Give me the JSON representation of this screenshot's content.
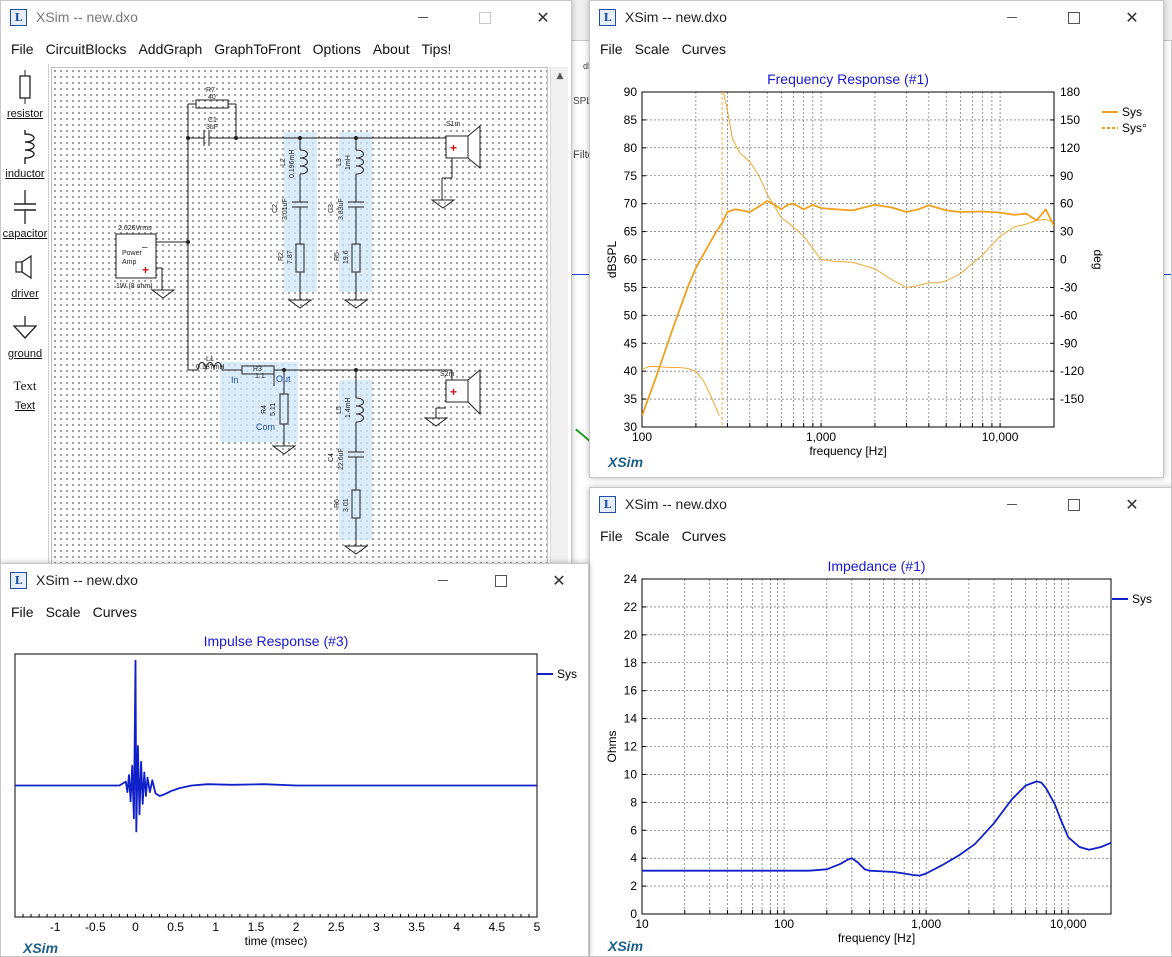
{
  "circuit_window": {
    "title": "XSim -- new.dxo",
    "menu": [
      "File",
      "CircuitBlocks",
      "AddGraph",
      "GraphToFront",
      "Options",
      "About",
      "Tips!"
    ],
    "palette": [
      {
        "label": "resistor",
        "icon": "resistor-icon"
      },
      {
        "label": "inductor",
        "icon": "inductor-icon"
      },
      {
        "label": "capacitor",
        "icon": "capacitor-icon"
      },
      {
        "label": "driver",
        "icon": "speaker-icon"
      },
      {
        "label": "ground",
        "icon": "ground-icon"
      },
      {
        "label": "Text",
        "icon": "text-icon"
      }
    ],
    "text_tool_glyph": "Text",
    "components": {
      "R7": {
        "name": "R7",
        "value": "40"
      },
      "C1": {
        "name": "C1",
        "value": "3uF"
      },
      "L2": {
        "name": "L2",
        "value": "0.196mH"
      },
      "L3": {
        "name": "L3",
        "value": "1mH"
      },
      "C2": {
        "name": "C2",
        "value": "3.01uF"
      },
      "C3": {
        "name": "C3",
        "value": "3.83uF"
      },
      "R2": {
        "name": "R2",
        "value": "7.87"
      },
      "R5": {
        "name": "R5",
        "value": "19.6"
      },
      "S1m": {
        "name": "S1m"
      },
      "S2m": {
        "name": "S2m"
      },
      "L1": {
        "name": "L1",
        "value": "0.187mH"
      },
      "R3": {
        "name": "R3",
        "value": "1.1"
      },
      "R4": {
        "name": "R4",
        "value": "5.11"
      },
      "L5": {
        "name": "L5",
        "value": "1.4mH"
      },
      "C4": {
        "name": "C4",
        "value": "22.6uF"
      },
      "R6": {
        "name": "R6",
        "value": "3.01"
      },
      "amp": {
        "vrms": "2.626Vrms",
        "line1": "Power",
        "line2": "Amp",
        "power": "1W (8 ohm)"
      },
      "lpad": {
        "in": "In",
        "out": "Out",
        "com": "Com"
      }
    }
  },
  "behind_window": {
    "fragments": [
      "dB",
      "SPL",
      "Filte"
    ]
  },
  "freq_window": {
    "title": "XSim -- new.dxo",
    "menu": [
      "File",
      "Scale",
      "Curves"
    ],
    "watermark": "XSim",
    "chart_data": {
      "type": "line",
      "title": "Frequency Response (#1)",
      "xlabel": "frequency [Hz]",
      "ylabel": "dBSPL",
      "y2label": "deg",
      "xscale": "log",
      "xlim": [
        100,
        20000
      ],
      "ylim": [
        30,
        90
      ],
      "y2lim": [
        -180,
        180
      ],
      "xticks": [
        {
          "v": 100,
          "label": "100"
        },
        {
          "v": 1000,
          "label": "1,000"
        },
        {
          "v": 10000,
          "label": "10,000"
        }
      ],
      "yticks": [
        30,
        35,
        40,
        45,
        50,
        55,
        60,
        65,
        70,
        75,
        80,
        85,
        90
      ],
      "y2ticks": [
        {
          "v": 180,
          "label": "180"
        },
        {
          "v": 150,
          "label": "150"
        },
        {
          "v": 120,
          "label": "120"
        },
        {
          "v": 90,
          "label": "90"
        },
        {
          "v": 60,
          "label": "60"
        },
        {
          "v": 30,
          "label": "30"
        },
        {
          "v": 0,
          "label": "0"
        },
        {
          "v": -30,
          "label": "-30"
        },
        {
          "v": -60,
          "label": "-60"
        },
        {
          "v": -90,
          "label": "-90"
        },
        {
          "v": -120,
          "label": "-120"
        },
        {
          "v": -150,
          "label": "-150"
        }
      ],
      "grid": true,
      "legend": "top-right",
      "series": [
        {
          "name": "Sys",
          "color": "#f0a020",
          "axis": "left",
          "x": [
            100,
            120,
            150,
            180,
            200,
            230,
            260,
            280,
            300,
            330,
            360,
            400,
            450,
            500,
            550,
            600,
            650,
            700,
            750,
            800,
            900,
            1000,
            1200,
            1500,
            2000,
            2500,
            3000,
            3500,
            4000,
            5000,
            6000,
            8000,
            10000,
            12000,
            14000,
            16000,
            18000,
            20000
          ],
          "y": [
            32,
            39,
            48,
            55,
            58.5,
            62,
            65,
            66.5,
            68.5,
            69,
            68.8,
            68.5,
            69.5,
            70.5,
            69.8,
            69,
            69.8,
            70,
            69.5,
            69,
            69.8,
            69.2,
            69,
            68.8,
            69.8,
            69.3,
            68.5,
            69,
            69.7,
            68.8,
            68.5,
            68.6,
            68.4,
            68,
            68.2,
            67,
            69,
            66
          ]
        },
        {
          "name": "Sys°",
          "color": "#f0a020",
          "axis": "right",
          "dashed": false,
          "x": [
            100,
            110,
            120,
            140,
            160,
            180,
            200,
            220,
            240,
            260,
            270,
            285,
            300,
            320,
            350,
            400,
            450,
            500,
            550,
            600,
            700,
            800,
            1000,
            1200,
            1500,
            2000,
            2500,
            3000,
            3500,
            4000,
            4500,
            5000,
            6000,
            8000,
            10000,
            12000,
            14000,
            16000,
            18000,
            20000
          ],
          "y": [
            -118,
            -115,
            -115,
            -116,
            -116,
            -117,
            -120,
            -130,
            -145,
            -160,
            -168,
            180,
            160,
            130,
            115,
            105,
            90,
            70,
            57,
            45,
            35,
            25,
            0,
            -2,
            -3,
            -10,
            -22,
            -30,
            -28,
            -25,
            -25,
            -23,
            -15,
            5,
            25,
            35,
            38,
            42,
            43,
            40
          ]
        }
      ],
      "vline_hz": 280
    }
  },
  "imp_window": {
    "title": "XSim -- new.dxo",
    "menu": [
      "File",
      "Scale",
      "Curves"
    ],
    "watermark": "XSim",
    "chart_data": {
      "type": "line",
      "title": "Impedance (#1)",
      "xlabel": "frequency [Hz]",
      "ylabel": "Ohms",
      "xscale": "log",
      "xlim": [
        10,
        20000
      ],
      "ylim": [
        0,
        24
      ],
      "xticks": [
        {
          "v": 10,
          "label": "10"
        },
        {
          "v": 100,
          "label": "100"
        },
        {
          "v": 1000,
          "label": "1,000"
        },
        {
          "v": 10000,
          "label": "10,000"
        }
      ],
      "yticks": [
        0,
        2,
        4,
        6,
        8,
        10,
        12,
        14,
        16,
        18,
        20,
        22,
        24
      ],
      "grid": true,
      "legend": "top-right",
      "series": [
        {
          "name": "Sys",
          "color": "#1020c8",
          "x": [
            10,
            50,
            100,
            150,
            200,
            250,
            280,
            300,
            330,
            370,
            400,
            500,
            600,
            700,
            800,
            900,
            1000,
            1300,
            1700,
            2200,
            3000,
            4000,
            5000,
            6000,
            6500,
            7000,
            8000,
            9000,
            10000,
            12000,
            14000,
            17000,
            20000
          ],
          "y": [
            3.1,
            3.1,
            3.1,
            3.1,
            3.2,
            3.6,
            3.9,
            4.0,
            3.7,
            3.2,
            3.1,
            3.05,
            3.0,
            2.9,
            2.8,
            2.75,
            2.9,
            3.5,
            4.2,
            5.0,
            6.5,
            8.2,
            9.2,
            9.5,
            9.4,
            9.0,
            7.9,
            6.6,
            5.5,
            4.8,
            4.6,
            4.8,
            5.1
          ]
        }
      ]
    }
  },
  "impulse_window": {
    "title": "XSim -- new.dxo",
    "menu": [
      "File",
      "Scale",
      "Curves"
    ],
    "watermark": "XSim",
    "chart_data": {
      "type": "line",
      "title": "Impulse Response (#3)",
      "xlabel": "time (msec)",
      "ylabel": "",
      "xlim": [
        -1.5,
        5
      ],
      "ylim": [
        -1,
        1
      ],
      "xticks": [
        {
          "v": -1,
          "label": "-1"
        },
        {
          "v": -0.5,
          "label": "-0.5"
        },
        {
          "v": 0,
          "label": "0"
        },
        {
          "v": 0.5,
          "label": "0.5"
        },
        {
          "v": 1,
          "label": "1"
        },
        {
          "v": 1.5,
          "label": "1.5"
        },
        {
          "v": 2,
          "label": "2"
        },
        {
          "v": 2.5,
          "label": "2.5"
        },
        {
          "v": 3,
          "label": "3"
        },
        {
          "v": 3.5,
          "label": "3.5"
        },
        {
          "v": 4,
          "label": "4"
        },
        {
          "v": 4.5,
          "label": "4.5"
        },
        {
          "v": 5,
          "label": "5"
        }
      ],
      "grid": false,
      "legend": "top-right",
      "series": [
        {
          "name": "Sys",
          "color": "#1020c8",
          "x": [
            -1.5,
            -0.2,
            -0.12,
            -0.1,
            -0.08,
            -0.06,
            -0.04,
            -0.02,
            0,
            0.01,
            0.03,
            0.05,
            0.07,
            0.09,
            0.11,
            0.13,
            0.15,
            0.18,
            0.21,
            0.25,
            0.3,
            0.35,
            0.45,
            0.55,
            0.7,
            0.9,
            1.2,
            1.6,
            2.0,
            3.0,
            4.0,
            5.0
          ],
          "y": [
            0,
            0,
            0.03,
            -0.05,
            0.08,
            -0.12,
            0.15,
            -0.25,
            0.95,
            -0.35,
            0.3,
            -0.22,
            0.18,
            -0.14,
            0.1,
            -0.08,
            0.06,
            -0.05,
            0.04,
            -0.06,
            -0.08,
            -0.07,
            -0.04,
            -0.02,
            0,
            0.01,
            0.005,
            0.01,
            0,
            0,
            0,
            0
          ]
        }
      ]
    }
  }
}
